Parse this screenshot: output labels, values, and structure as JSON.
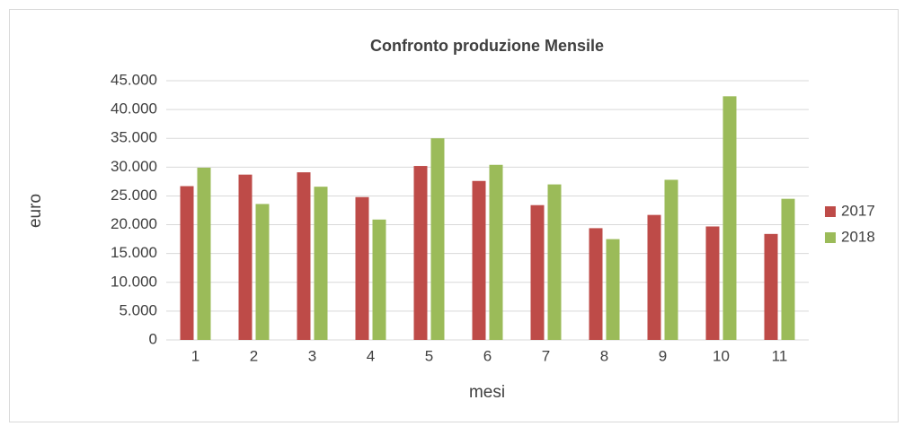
{
  "chart_data": {
    "type": "bar",
    "title": "Confronto produzione Mensile",
    "x_label": "mesi",
    "y_label": "euro",
    "categories": [
      "1",
      "2",
      "3",
      "4",
      "5",
      "6",
      "7",
      "8",
      "9",
      "10",
      "11"
    ],
    "series": [
      {
        "name": "2017",
        "color": "#be4b48",
        "values": [
          26700,
          28700,
          29100,
          24800,
          30200,
          27600,
          23400,
          19400,
          21700,
          19700,
          18400
        ]
      },
      {
        "name": "2018",
        "color": "#9bbb59",
        "values": [
          29900,
          23600,
          26600,
          20900,
          35000,
          30400,
          27000,
          17500,
          27800,
          42300,
          24500
        ]
      }
    ],
    "ylim": [
      0,
      45000
    ],
    "yticks": [
      0,
      {
        "value": 5000,
        "label": "5.000"
      },
      {
        "value": 10000,
        "label": "10.000"
      },
      {
        "value": 15000,
        "label": "15.000"
      },
      {
        "value": 20000,
        "label": "20.000"
      },
      {
        "value": 25000,
        "label": "25.000"
      },
      {
        "value": 30000,
        "label": "30.000"
      },
      {
        "value": 35000,
        "label": "35.000"
      },
      {
        "value": 40000,
        "label": "40.000"
      },
      {
        "value": 45000,
        "label": "45.000"
      }
    ],
    "grid": true,
    "legend": "right"
  }
}
